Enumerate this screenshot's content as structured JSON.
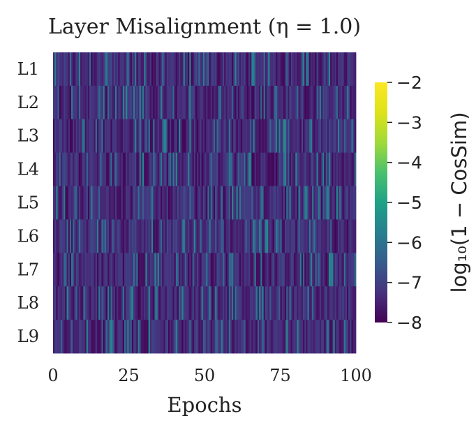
{
  "chart_data": {
    "type": "heatmap",
    "title": "Layer Misalignment (η = 1.0)",
    "xlabel": "Epochs",
    "ylabel": "",
    "rows": [
      "L1",
      "L2",
      "L3",
      "L4",
      "L5",
      "L6",
      "L7",
      "L8",
      "L9"
    ],
    "x_range": [
      0,
      100
    ],
    "x_ticks": [
      "0",
      "25",
      "50",
      "75",
      "100"
    ],
    "colorbar": {
      "label": "log₁₀(1 − CosSim)",
      "range": [
        -8,
        -2
      ],
      "ticks": [
        "−2",
        "−3",
        "−4",
        "−5",
        "−6",
        "−7",
        "−8"
      ],
      "colormap": "viridis"
    },
    "cell_value_typical": -7.5,
    "cell_value_spikes": -6.0,
    "cells_per_row": 200,
    "grid": false
  }
}
